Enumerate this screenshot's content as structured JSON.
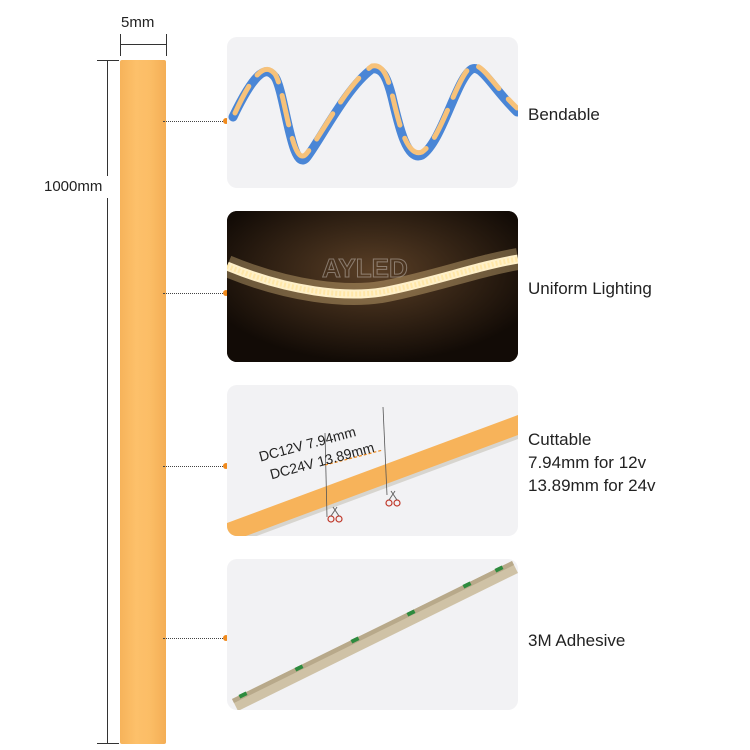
{
  "dimensions": {
    "width_label": "5mm",
    "length_label": "1000mm"
  },
  "features": [
    {
      "title": "Bendable",
      "lines": []
    },
    {
      "title": "Uniform Lighting",
      "lines": [],
      "watermark": "AYLED"
    },
    {
      "title": "Cuttable",
      "lines": [
        "7.94mm for 12v",
        "13.89mm for 24v"
      ],
      "spec_line_1": "DC12V  7.94mm",
      "spec_line_2": "DC24V  13.89mm"
    },
    {
      "title": "3M Adhesive",
      "lines": []
    }
  ],
  "colors": {
    "strip": "#fbbd66",
    "accent_dot": "#f08a1c",
    "panel_bg": "#f2f2f4",
    "blue_side": "#4a86d6"
  }
}
